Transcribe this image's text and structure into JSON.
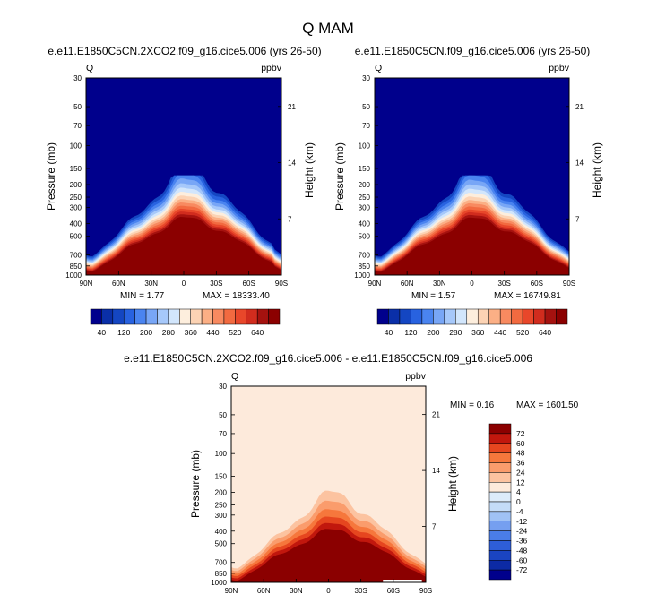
{
  "figure_title": "Q MAM",
  "chart_data": [
    {
      "type": "contour",
      "id": "left",
      "title": "e.e11.E1850C5CN.2XCO2.f09_g16.cice5.006 (yrs 26-50)",
      "left_label": "Q",
      "right_label": "ppbv",
      "ylabel": "Pressure (mb)",
      "ylabel_right": "Height (km)",
      "x_ticks": [
        "90N",
        "60N",
        "30N",
        "0",
        "30S",
        "60S",
        "90S"
      ],
      "y_ticks": [
        "30",
        "50",
        "70",
        "100",
        "150",
        "200",
        "250",
        "300",
        "400",
        "500",
        "700",
        "850",
        "1000"
      ],
      "y_ticks_right": [
        "21",
        "14",
        "7"
      ],
      "min_label": "MIN =   1.77",
      "max_label": "MAX = 18333.40",
      "levels": [
        40,
        80,
        120,
        160,
        200,
        240,
        280,
        320,
        360,
        400,
        440,
        480,
        520,
        560,
        600,
        640
      ],
      "colorbar_labels": [
        "40",
        "120",
        "200",
        "280",
        "360",
        "440",
        "520",
        "640"
      ]
    },
    {
      "type": "contour",
      "id": "right",
      "title": "e.e11.E1850C5CN.f09_g16.cice5.006 (yrs 26-50)",
      "left_label": "Q",
      "right_label": "ppbv",
      "ylabel": "Pressure (mb)",
      "ylabel_right": "Height (km)",
      "x_ticks": [
        "90N",
        "60N",
        "30N",
        "0",
        "30S",
        "60S",
        "90S"
      ],
      "y_ticks": [
        "30",
        "50",
        "70",
        "100",
        "150",
        "200",
        "250",
        "300",
        "400",
        "500",
        "700",
        "850",
        "1000"
      ],
      "y_ticks_right": [
        "21",
        "14",
        "7"
      ],
      "min_label": "MIN =   1.57",
      "max_label": "MAX = 16749.81",
      "levels": [
        40,
        80,
        120,
        160,
        200,
        240,
        280,
        320,
        360,
        400,
        440,
        480,
        520,
        560,
        600,
        640
      ],
      "colorbar_labels": [
        "40",
        "120",
        "200",
        "280",
        "360",
        "440",
        "520",
        "640"
      ]
    },
    {
      "type": "contour",
      "id": "diff",
      "title": "e.e11.E1850C5CN.2XCO2.f09_g16.cice5.006 - e.e11.E1850C5CN.f09_g16.cice5.006",
      "left_label": "Q",
      "right_label": "ppbv",
      "ylabel": "Pressure (mb)",
      "ylabel_right": "Height (km)",
      "x_ticks": [
        "90N",
        "60N",
        "30N",
        "0",
        "30S",
        "60S",
        "90S"
      ],
      "y_ticks": [
        "30",
        "50",
        "70",
        "100",
        "150",
        "200",
        "250",
        "300",
        "400",
        "500",
        "700",
        "850",
        "1000"
      ],
      "y_ticks_right": [
        "21",
        "14",
        "7"
      ],
      "min_label": "MIN =   0.16",
      "max_label": "MAX = 1601.50",
      "levels": [
        -72,
        -60,
        -48,
        -36,
        -24,
        -12,
        -4,
        0,
        4,
        12,
        24,
        36,
        48,
        60,
        72
      ],
      "colorbar_labels": [
        "72",
        "60",
        "48",
        "36",
        "24",
        "12",
        "4",
        "0",
        "-4",
        "-12",
        "-24",
        "-36",
        "-48",
        "-60",
        "-72"
      ]
    }
  ],
  "colors": {
    "blue_red_17": [
      "#00008c",
      "#0a2fa8",
      "#1446c2",
      "#2862e0",
      "#4a84f0",
      "#78a6f6",
      "#a6c8fa",
      "#d2e6fc",
      "#fdeedd",
      "#fcd3b4",
      "#fbaf85",
      "#f88a60",
      "#f26a40",
      "#e8472a",
      "#d12c1e",
      "#a5120f",
      "#8b0000"
    ],
    "diff_16_top_down": [
      "#8b0000",
      "#c1170d",
      "#e6461f",
      "#f6773c",
      "#fa9c6c",
      "#fcc3a0",
      "#fdeadb",
      "#dcebfa",
      "#c4dcf8",
      "#a0c2f5",
      "#759ff0",
      "#4a7de8",
      "#2e5ed8",
      "#1a44c2",
      "#0c2aa4",
      "#00008c"
    ]
  }
}
